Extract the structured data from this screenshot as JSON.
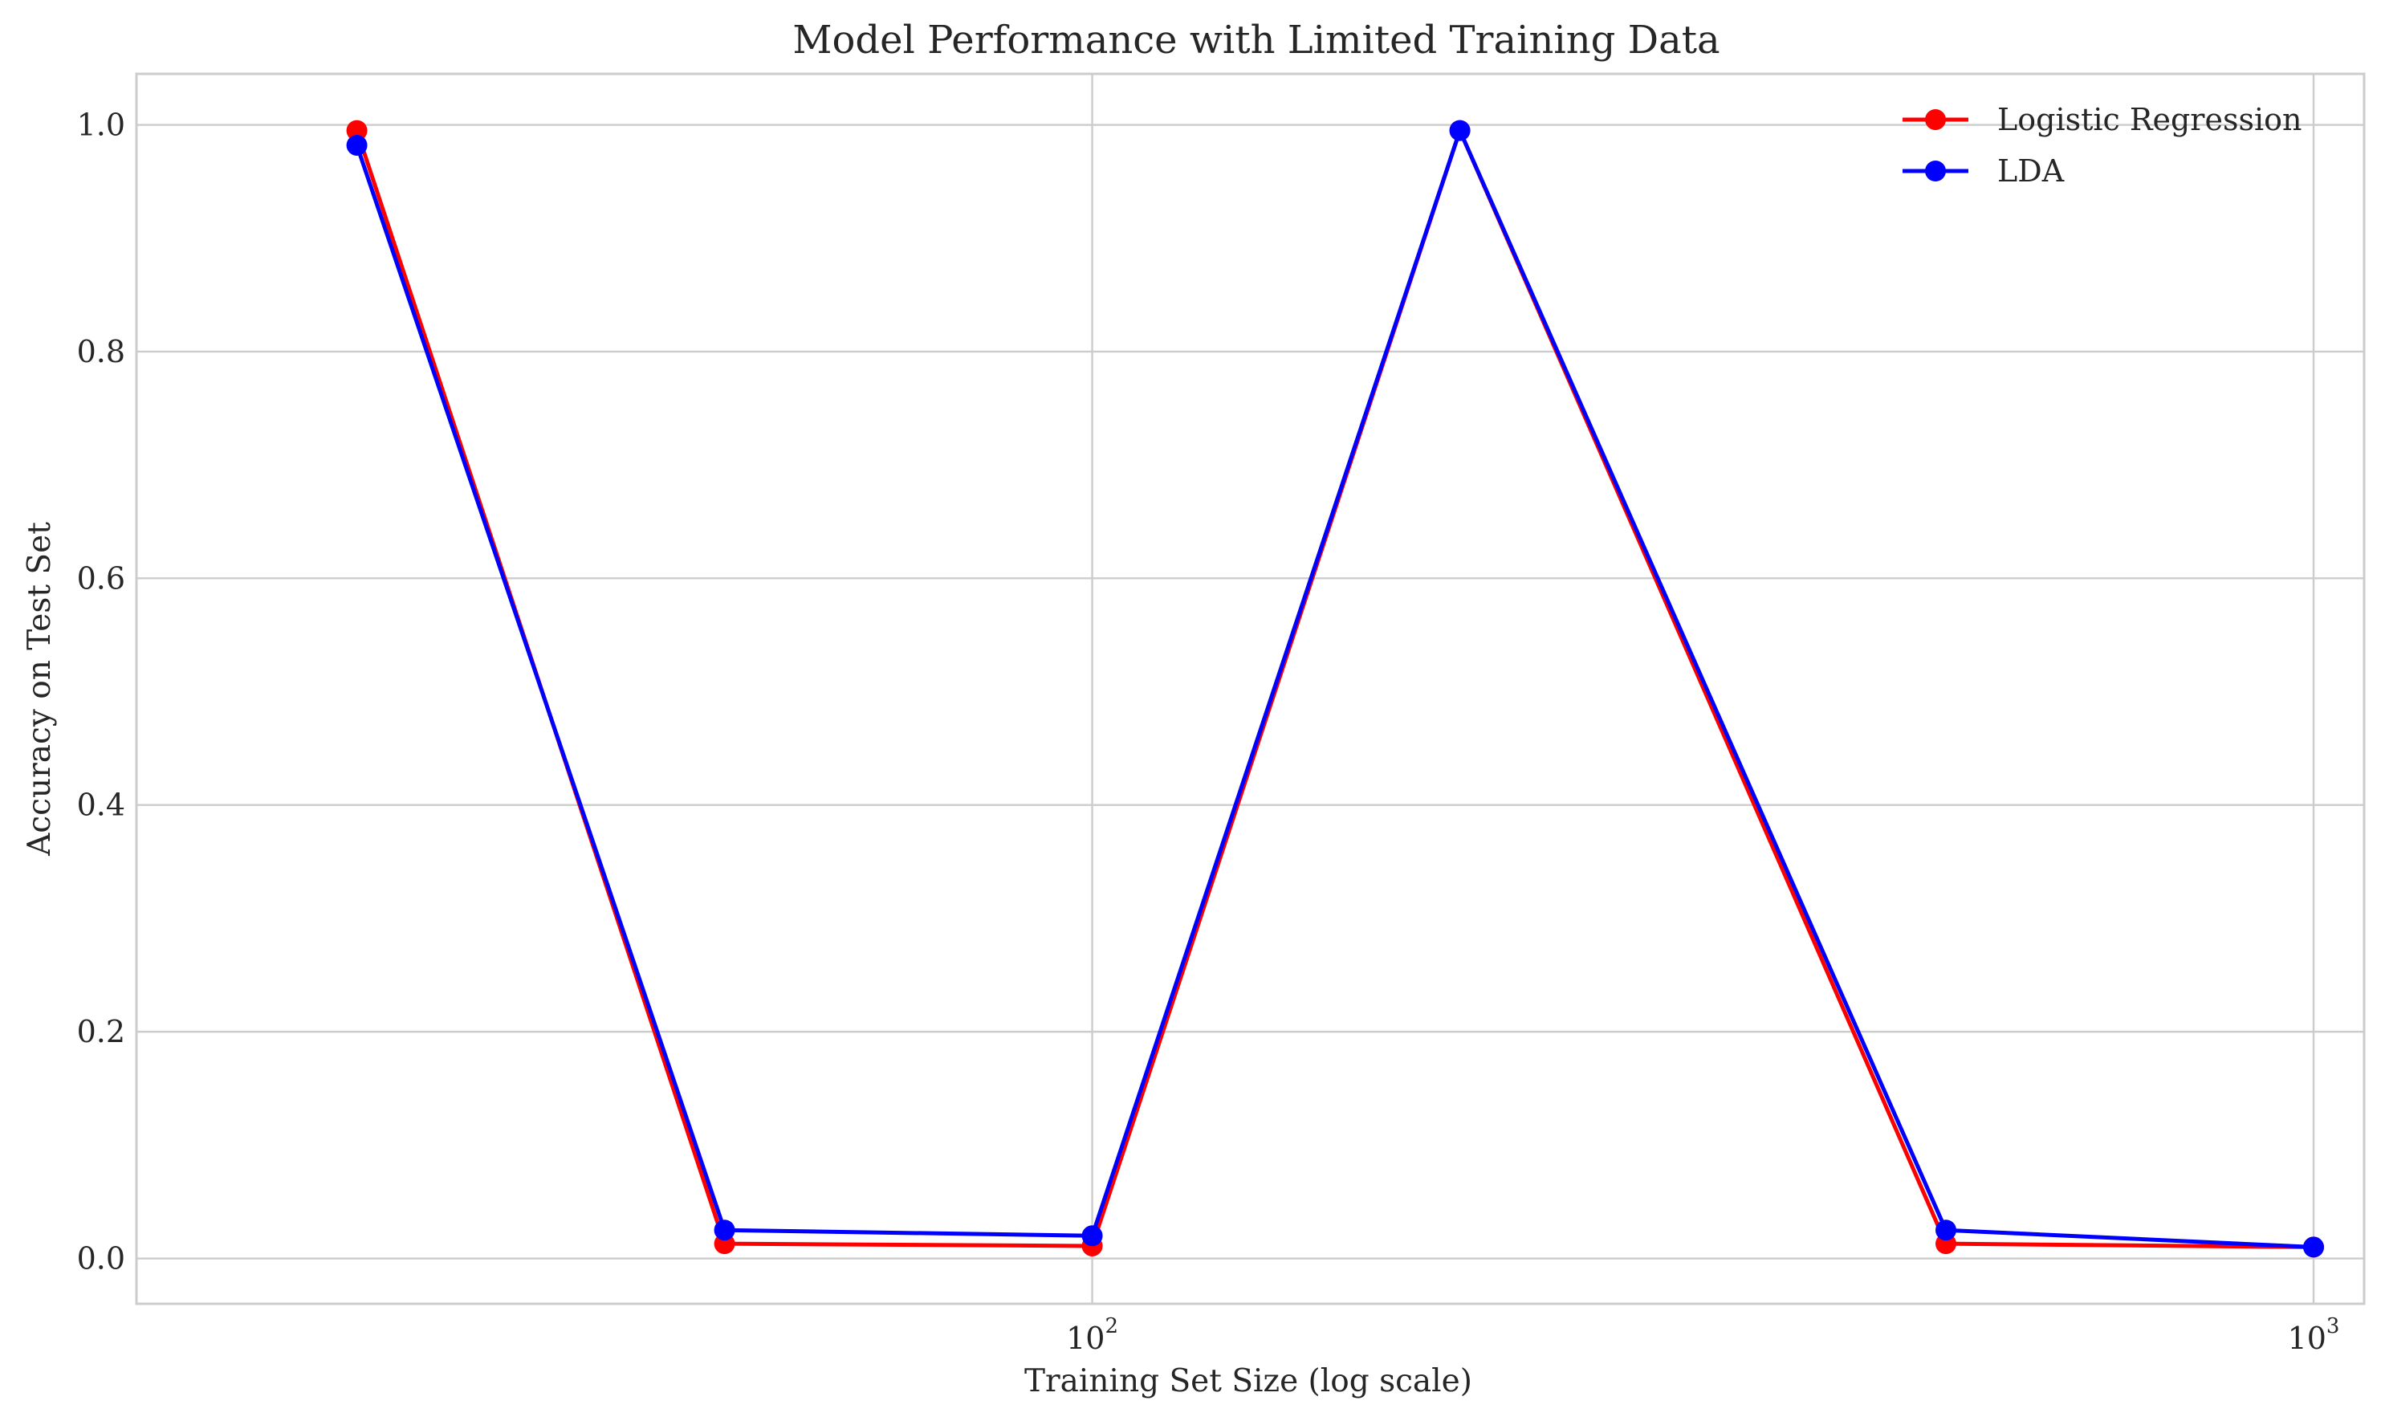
{
  "chart_data": {
    "type": "line",
    "title": "Model Performance with Limited Training Data",
    "xlabel": "Training Set Size (log scale)",
    "ylabel": "Accuracy on Test Set",
    "xscale": "log",
    "xlim": [
      16.5,
      1100
    ],
    "ylim": [
      -0.04,
      1.045
    ],
    "x": [
      25,
      50,
      100,
      200,
      500,
      1000
    ],
    "series": [
      {
        "name": "Logistic Regression",
        "color": "#ff0000",
        "values": [
          0.995,
          0.013,
          0.011,
          0.995,
          0.013,
          0.01
        ]
      },
      {
        "name": "LDA",
        "color": "#0000ff",
        "values": [
          0.982,
          0.025,
          0.02,
          0.995,
          0.025,
          0.01
        ]
      }
    ],
    "x_ticks": [
      {
        "value": 100,
        "base": "10",
        "exponent": "2"
      },
      {
        "value": 1000,
        "base": "10",
        "exponent": "3"
      }
    ],
    "y_ticks": [
      {
        "value": 0.0,
        "label": "0.0"
      },
      {
        "value": 0.2,
        "label": "0.2"
      },
      {
        "value": 0.4,
        "label": "0.4"
      },
      {
        "value": 0.6,
        "label": "0.6"
      },
      {
        "value": 0.8,
        "label": "0.8"
      },
      {
        "value": 1.0,
        "label": "1.0"
      }
    ],
    "grid": true,
    "legend_position": "top-right"
  }
}
